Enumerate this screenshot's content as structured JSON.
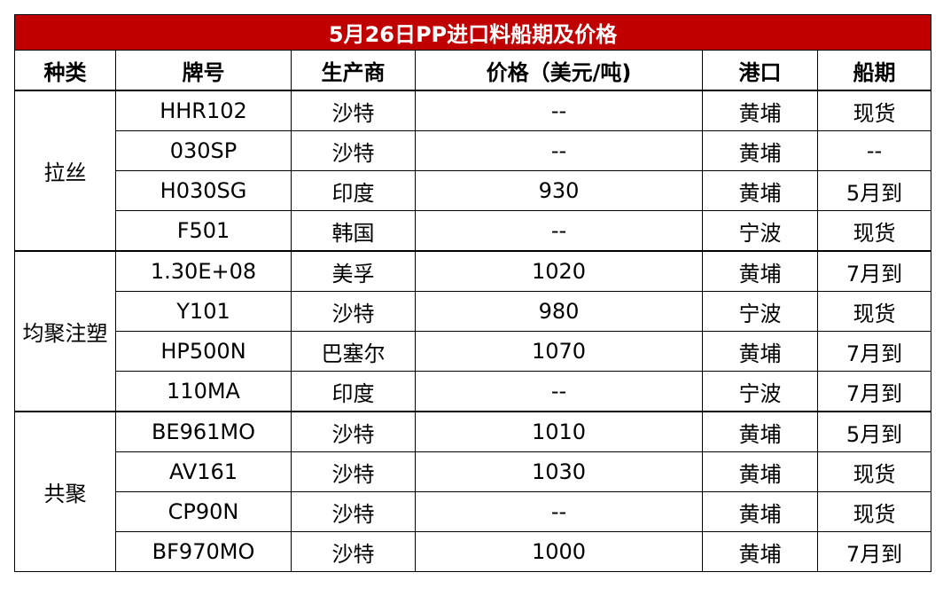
{
  "table": {
    "title": "5月26日PP进口料船期及价格",
    "columns": [
      "种类",
      "牌号",
      "生产商",
      "价格（美元/吨)",
      "港口",
      "船期"
    ],
    "groups": [
      {
        "name": "拉丝",
        "rows": [
          [
            "HHR102",
            "沙特",
            "--",
            "黄埔",
            "现货"
          ],
          [
            "030SP",
            "沙特",
            "--",
            "黄埔",
            "--"
          ],
          [
            "H030SG",
            "印度",
            930,
            "黄埔",
            "5月到"
          ],
          [
            "F501",
            "韩国",
            "--",
            "宁波",
            "现货"
          ]
        ]
      },
      {
        "name": "均聚注塑",
        "rows": [
          [
            "1.30E+08",
            "美孚",
            1020,
            "黄埔",
            "7月到"
          ],
          [
            "Y101",
            "沙特",
            980,
            "宁波",
            "现货"
          ],
          [
            "HP500N",
            "巴塞尔",
            1070,
            "黄埔",
            "7月到"
          ],
          [
            "110MA",
            "印度",
            "--",
            "宁波",
            "7月到"
          ]
        ]
      },
      {
        "name": "共聚",
        "rows": [
          [
            "BE961MO",
            "沙特",
            1010,
            "黄埔",
            "5月到"
          ],
          [
            "AV161",
            "沙特",
            1030,
            "黄埔",
            "现货"
          ],
          [
            "CP90N",
            "沙特",
            "--",
            "黄埔",
            "现货"
          ],
          [
            "BF970MO",
            "沙特",
            1000,
            "黄埔",
            "7月到"
          ]
        ]
      }
    ]
  }
}
